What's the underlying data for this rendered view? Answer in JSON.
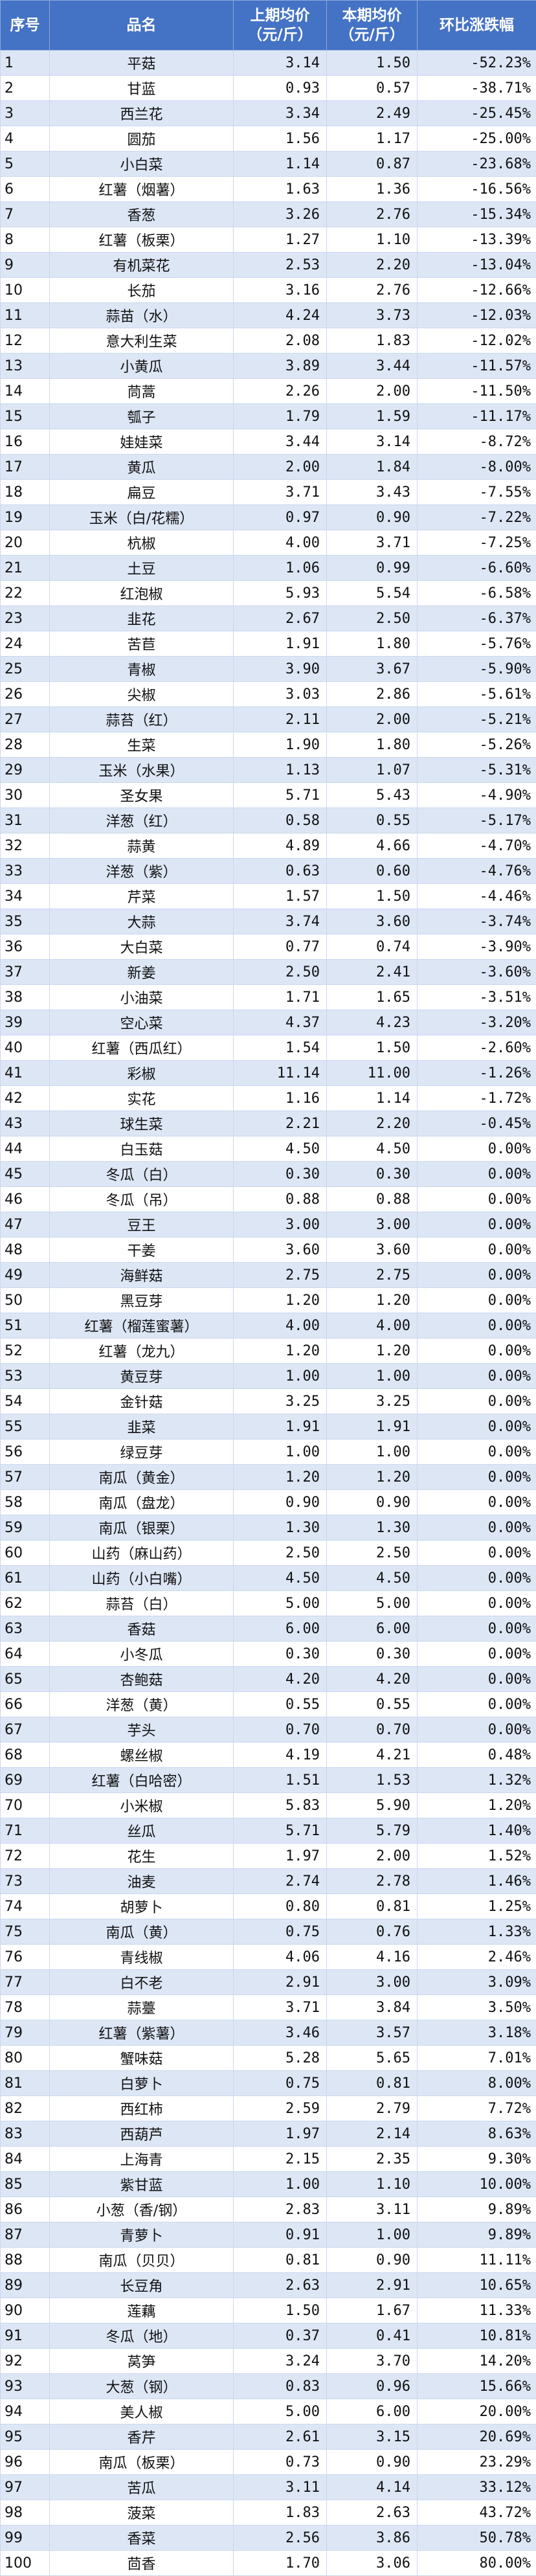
{
  "header": {
    "idx": "序号",
    "name": "品名",
    "prev_line1": "上期均价",
    "prev_line2": "（元/斤）",
    "curr_line1": "本期均价",
    "curr_line2": "（元/斤）",
    "change": "环比涨跌幅"
  },
  "rows": [
    [
      "1",
      "平菇",
      "3.14",
      "1.50",
      "-52.23%"
    ],
    [
      "2",
      "甘蓝",
      "0.93",
      "0.57",
      "-38.71%"
    ],
    [
      "3",
      "西兰花",
      "3.34",
      "2.49",
      "-25.45%"
    ],
    [
      "4",
      "圆茄",
      "1.56",
      "1.17",
      "-25.00%"
    ],
    [
      "5",
      "小白菜",
      "1.14",
      "0.87",
      "-23.68%"
    ],
    [
      "6",
      "红薯（烟薯）",
      "1.63",
      "1.36",
      "-16.56%"
    ],
    [
      "7",
      "香葱",
      "3.26",
      "2.76",
      "-15.34%"
    ],
    [
      "8",
      "红薯（板栗）",
      "1.27",
      "1.10",
      "-13.39%"
    ],
    [
      "9",
      "有机菜花",
      "2.53",
      "2.20",
      "-13.04%"
    ],
    [
      "10",
      "长茄",
      "3.16",
      "2.76",
      "-12.66%"
    ],
    [
      "11",
      "蒜苗（水）",
      "4.24",
      "3.73",
      "-12.03%"
    ],
    [
      "12",
      "意大利生菜",
      "2.08",
      "1.83",
      "-12.02%"
    ],
    [
      "13",
      "小黄瓜",
      "3.89",
      "3.44",
      "-11.57%"
    ],
    [
      "14",
      "茼蒿",
      "2.26",
      "2.00",
      "-11.50%"
    ],
    [
      "15",
      "瓠子",
      "1.79",
      "1.59",
      "-11.17%"
    ],
    [
      "16",
      "娃娃菜",
      "3.44",
      "3.14",
      "-8.72%"
    ],
    [
      "17",
      "黄瓜",
      "2.00",
      "1.84",
      "-8.00%"
    ],
    [
      "18",
      "扁豆",
      "3.71",
      "3.43",
      "-7.55%"
    ],
    [
      "19",
      "玉米（白/花糯）",
      "0.97",
      "0.90",
      "-7.22%"
    ],
    [
      "20",
      "杭椒",
      "4.00",
      "3.71",
      "-7.25%"
    ],
    [
      "21",
      "土豆",
      "1.06",
      "0.99",
      "-6.60%"
    ],
    [
      "22",
      "红泡椒",
      "5.93",
      "5.54",
      "-6.58%"
    ],
    [
      "23",
      "韭花",
      "2.67",
      "2.50",
      "-6.37%"
    ],
    [
      "24",
      "苦苣",
      "1.91",
      "1.80",
      "-5.76%"
    ],
    [
      "25",
      "青椒",
      "3.90",
      "3.67",
      "-5.90%"
    ],
    [
      "26",
      "尖椒",
      "3.03",
      "2.86",
      "-5.61%"
    ],
    [
      "27",
      "蒜苔（红）",
      "2.11",
      "2.00",
      "-5.21%"
    ],
    [
      "28",
      "生菜",
      "1.90",
      "1.80",
      "-5.26%"
    ],
    [
      "29",
      "玉米（水果）",
      "1.13",
      "1.07",
      "-5.31%"
    ],
    [
      "30",
      "圣女果",
      "5.71",
      "5.43",
      "-4.90%"
    ],
    [
      "31",
      "洋葱（红）",
      "0.58",
      "0.55",
      "-5.17%"
    ],
    [
      "32",
      "蒜黄",
      "4.89",
      "4.66",
      "-4.70%"
    ],
    [
      "33",
      "洋葱（紫）",
      "0.63",
      "0.60",
      "-4.76%"
    ],
    [
      "34",
      "芹菜",
      "1.57",
      "1.50",
      "-4.46%"
    ],
    [
      "35",
      "大蒜",
      "3.74",
      "3.60",
      "-3.74%"
    ],
    [
      "36",
      "大白菜",
      "0.77",
      "0.74",
      "-3.90%"
    ],
    [
      "37",
      "新姜",
      "2.50",
      "2.41",
      "-3.60%"
    ],
    [
      "38",
      "小油菜",
      "1.71",
      "1.65",
      "-3.51%"
    ],
    [
      "39",
      "空心菜",
      "4.37",
      "4.23",
      "-3.20%"
    ],
    [
      "40",
      "红薯（西瓜红）",
      "1.54",
      "1.50",
      "-2.60%"
    ],
    [
      "41",
      "彩椒",
      "11.14",
      "11.00",
      "-1.26%"
    ],
    [
      "42",
      "实花",
      "1.16",
      "1.14",
      "-1.72%"
    ],
    [
      "43",
      "球生菜",
      "2.21",
      "2.20",
      "-0.45%"
    ],
    [
      "44",
      "白玉菇",
      "4.50",
      "4.50",
      "0.00%"
    ],
    [
      "45",
      "冬瓜（白）",
      "0.30",
      "0.30",
      "0.00%"
    ],
    [
      "46",
      "冬瓜（吊）",
      "0.88",
      "0.88",
      "0.00%"
    ],
    [
      "47",
      "豆王",
      "3.00",
      "3.00",
      "0.00%"
    ],
    [
      "48",
      "干姜",
      "3.60",
      "3.60",
      "0.00%"
    ],
    [
      "49",
      "海鲜菇",
      "2.75",
      "2.75",
      "0.00%"
    ],
    [
      "50",
      "黑豆芽",
      "1.20",
      "1.20",
      "0.00%"
    ],
    [
      "51",
      "红薯（榴莲蜜薯）",
      "4.00",
      "4.00",
      "0.00%"
    ],
    [
      "52",
      "红薯（龙九）",
      "1.20",
      "1.20",
      "0.00%"
    ],
    [
      "53",
      "黄豆芽",
      "1.00",
      "1.00",
      "0.00%"
    ],
    [
      "54",
      "金针菇",
      "3.25",
      "3.25",
      "0.00%"
    ],
    [
      "55",
      "韭菜",
      "1.91",
      "1.91",
      "0.00%"
    ],
    [
      "56",
      "绿豆芽",
      "1.00",
      "1.00",
      "0.00%"
    ],
    [
      "57",
      "南瓜（黄金）",
      "1.20",
      "1.20",
      "0.00%"
    ],
    [
      "58",
      "南瓜（盘龙）",
      "0.90",
      "0.90",
      "0.00%"
    ],
    [
      "59",
      "南瓜（银栗）",
      "1.30",
      "1.30",
      "0.00%"
    ],
    [
      "60",
      "山药（麻山药）",
      "2.50",
      "2.50",
      "0.00%"
    ],
    [
      "61",
      "山药（小白嘴）",
      "4.50",
      "4.50",
      "0.00%"
    ],
    [
      "62",
      "蒜苔（白）",
      "5.00",
      "5.00",
      "0.00%"
    ],
    [
      "63",
      "香菇",
      "6.00",
      "6.00",
      "0.00%"
    ],
    [
      "64",
      "小冬瓜",
      "0.30",
      "0.30",
      "0.00%"
    ],
    [
      "65",
      "杏鲍菇",
      "4.20",
      "4.20",
      "0.00%"
    ],
    [
      "66",
      "洋葱（黄）",
      "0.55",
      "0.55",
      "0.00%"
    ],
    [
      "67",
      "芋头",
      "0.70",
      "0.70",
      "0.00%"
    ],
    [
      "68",
      "螺丝椒",
      "4.19",
      "4.21",
      "0.48%"
    ],
    [
      "69",
      "红薯（白哈密）",
      "1.51",
      "1.53",
      "1.32%"
    ],
    [
      "70",
      "小米椒",
      "5.83",
      "5.90",
      "1.20%"
    ],
    [
      "71",
      "丝瓜",
      "5.71",
      "5.79",
      "1.40%"
    ],
    [
      "72",
      "花生",
      "1.97",
      "2.00",
      "1.52%"
    ],
    [
      "73",
      "油麦",
      "2.74",
      "2.78",
      "1.46%"
    ],
    [
      "74",
      "胡萝卜",
      "0.80",
      "0.81",
      "1.25%"
    ],
    [
      "75",
      "南瓜（黄）",
      "0.75",
      "0.76",
      "1.33%"
    ],
    [
      "76",
      "青线椒",
      "4.06",
      "4.16",
      "2.46%"
    ],
    [
      "77",
      "白不老",
      "2.91",
      "3.00",
      "3.09%"
    ],
    [
      "78",
      "蒜薹",
      "3.71",
      "3.84",
      "3.50%"
    ],
    [
      "79",
      "红薯（紫薯）",
      "3.46",
      "3.57",
      "3.18%"
    ],
    [
      "80",
      "蟹味菇",
      "5.28",
      "5.65",
      "7.01%"
    ],
    [
      "81",
      "白萝卜",
      "0.75",
      "0.81",
      "8.00%"
    ],
    [
      "82",
      "西红柿",
      "2.59",
      "2.79",
      "7.72%"
    ],
    [
      "83",
      "西葫芦",
      "1.97",
      "2.14",
      "8.63%"
    ],
    [
      "84",
      "上海青",
      "2.15",
      "2.35",
      "9.30%"
    ],
    [
      "85",
      "紫甘蓝",
      "1.00",
      "1.10",
      "10.00%"
    ],
    [
      "86",
      "小葱（香/钢）",
      "2.83",
      "3.11",
      "9.89%"
    ],
    [
      "87",
      "青萝卜",
      "0.91",
      "1.00",
      "9.89%"
    ],
    [
      "88",
      "南瓜（贝贝）",
      "0.81",
      "0.90",
      "11.11%"
    ],
    [
      "89",
      "长豆角",
      "2.63",
      "2.91",
      "10.65%"
    ],
    [
      "90",
      "莲藕",
      "1.50",
      "1.67",
      "11.33%"
    ],
    [
      "91",
      "冬瓜（地）",
      "0.37",
      "0.41",
      "10.81%"
    ],
    [
      "92",
      "莴笋",
      "3.24",
      "3.70",
      "14.20%"
    ],
    [
      "93",
      "大葱（钢）",
      "0.83",
      "0.96",
      "15.66%"
    ],
    [
      "94",
      "美人椒",
      "5.00",
      "6.00",
      "20.00%"
    ],
    [
      "95",
      "香芹",
      "2.61",
      "3.15",
      "20.69%"
    ],
    [
      "96",
      "南瓜（板栗）",
      "0.73",
      "0.90",
      "23.29%"
    ],
    [
      "97",
      "苦瓜",
      "3.11",
      "4.14",
      "33.12%"
    ],
    [
      "98",
      "菠菜",
      "1.83",
      "2.63",
      "43.72%"
    ],
    [
      "99",
      "香菜",
      "2.56",
      "3.86",
      "50.78%"
    ],
    [
      "100",
      "茴香",
      "1.70",
      "3.06",
      "80.00%"
    ]
  ]
}
